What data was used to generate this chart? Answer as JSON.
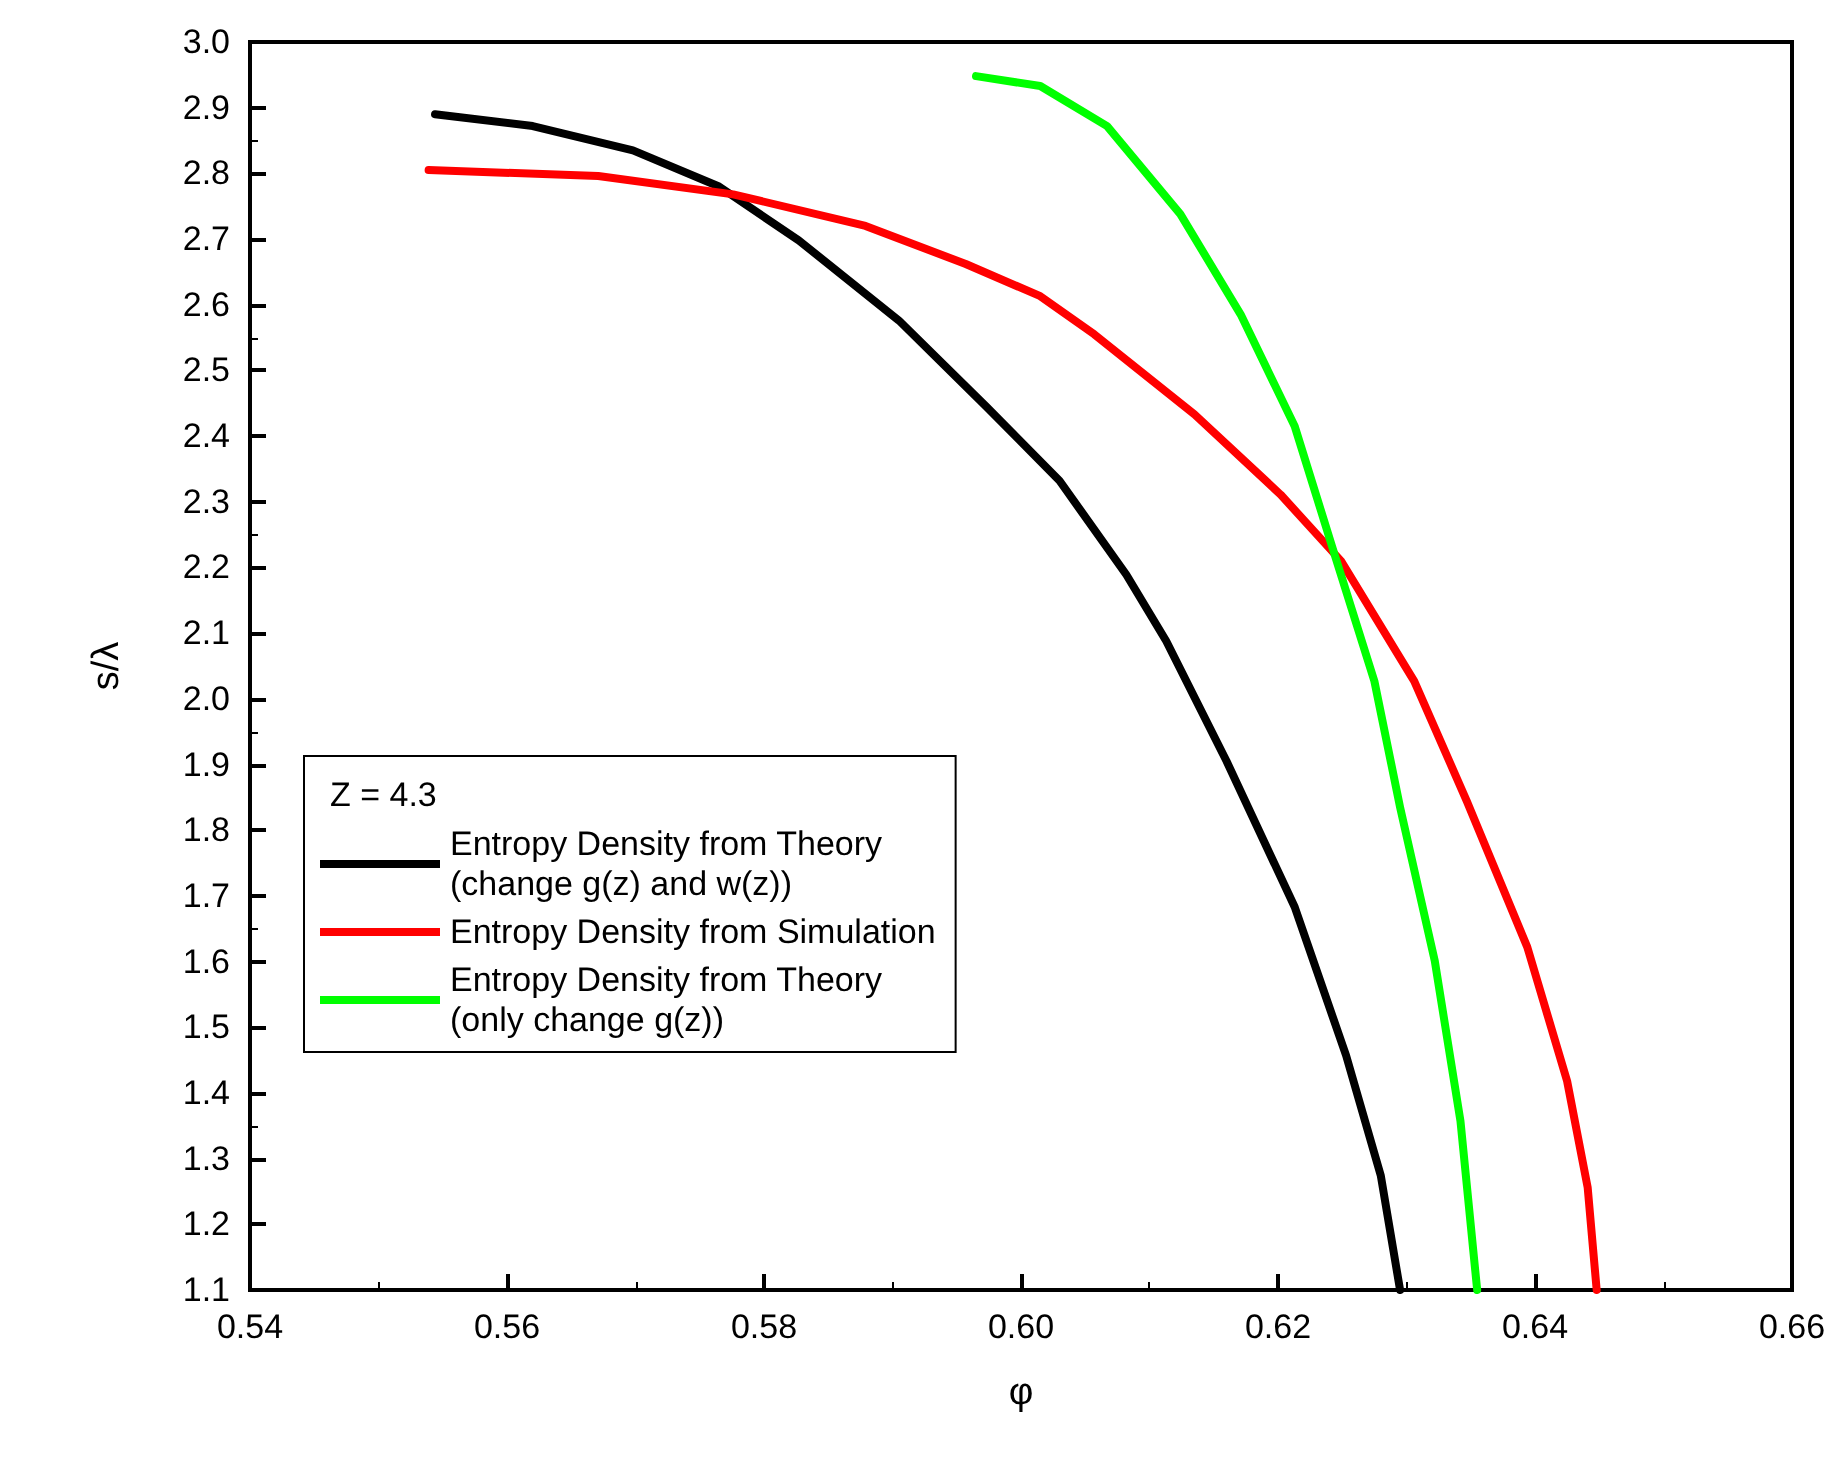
{
  "chart_data": {
    "type": "line",
    "xlabel": "φ",
    "ylabel": "s/λ",
    "legend_title": "Z = 4.3",
    "legend": "bottom left",
    "grid": false,
    "marker": "none",
    "line_style": "solid",
    "xlim": [
      0.54,
      0.66
    ],
    "xticks": [
      0.54,
      0.56,
      0.58,
      {
        "value": 0.6,
        "label": "0.60"
      },
      0.62,
      0.64,
      {
        "value": 0.66,
        "label": "0.66"
      }
    ],
    "ylim": [
      1.1,
      3.0
    ],
    "yticks": [
      1.1,
      1.2,
      1.3,
      1.4,
      1.5,
      1.6,
      1.7,
      1.8,
      1.9,
      {
        "value": 2,
        "label": "2.0"
      },
      2.1,
      2.2,
      2.3,
      2.4,
      2.5,
      2.6,
      2.7,
      2.8,
      2.9,
      {
        "value": 3,
        "label": "3.0"
      }
    ],
    "series": [
      {
        "name": "Entropy Density from Theory\n(change g(z) and w(z))",
        "color": "#000000",
        "x": [
          0.5544,
          0.562,
          0.5698,
          0.5765,
          0.5827,
          0.5905,
          0.5973,
          0.603,
          0.6082,
          0.6113,
          0.616,
          0.6213,
          0.6253,
          0.628,
          0.6295
        ],
        "values": [
          2.89,
          2.872,
          2.835,
          2.78,
          2.698,
          2.576,
          2.445,
          2.332,
          2.189,
          2.088,
          1.905,
          1.683,
          1.457,
          1.274,
          1.1
        ]
      },
      {
        "name": "Entropy Density from Simulation",
        "color": "#ff0000",
        "x": [
          0.5539,
          0.5671,
          0.5776,
          0.5879,
          0.5957,
          0.6015,
          0.6057,
          0.6135,
          0.6202,
          0.6249,
          0.6306,
          0.6347,
          0.6394,
          0.6425,
          0.6441,
          0.6448
        ],
        "values": [
          2.805,
          2.796,
          2.768,
          2.72,
          2.662,
          2.613,
          2.555,
          2.433,
          2.311,
          2.21,
          2.027,
          1.844,
          1.622,
          1.418,
          1.256,
          1.1
        ]
      },
      {
        "name": "Entropy Density from Theory\n(only change g(z))",
        "color": "#00ff00",
        "x": [
          0.5965,
          0.6015,
          0.6067,
          0.6124,
          0.6171,
          0.6213,
          0.6244,
          0.6275,
          0.6295,
          0.6322,
          0.6342,
          0.6355
        ],
        "values": [
          2.948,
          2.933,
          2.872,
          2.738,
          2.585,
          2.415,
          2.22,
          2.027,
          1.835,
          1.601,
          1.357,
          1.1
        ]
      }
    ]
  }
}
